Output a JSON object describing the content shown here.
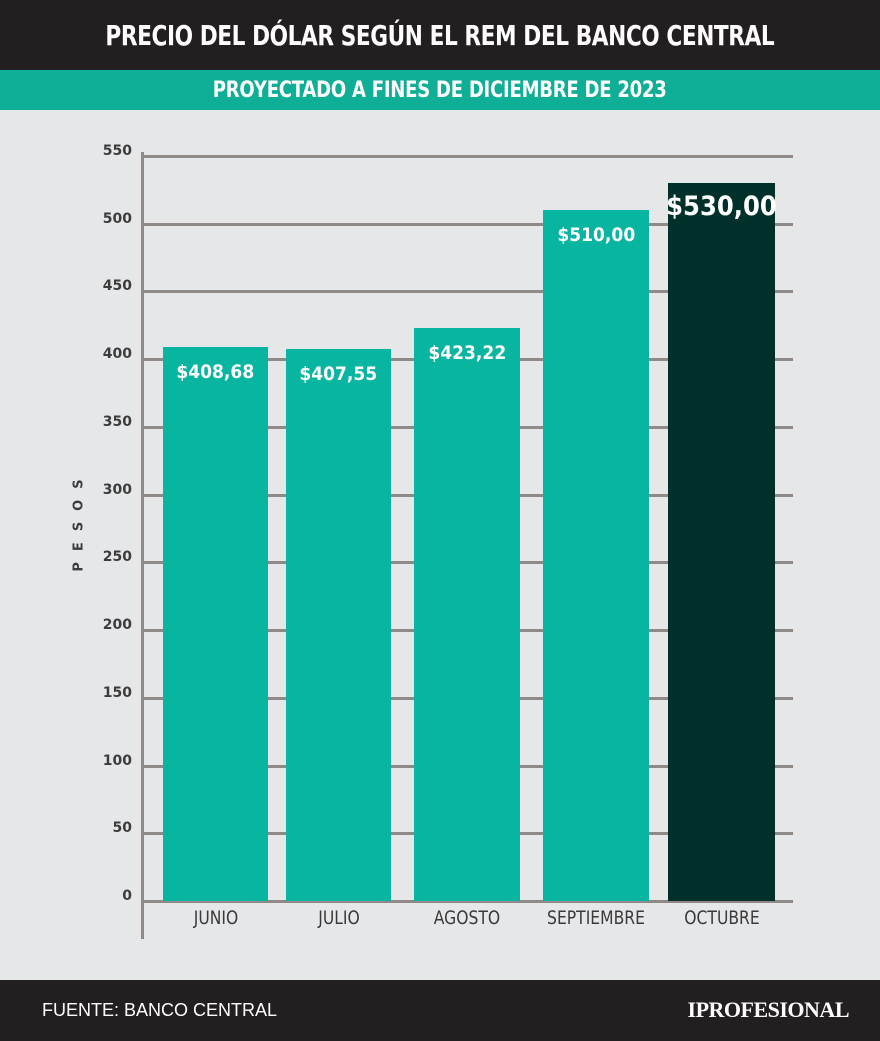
{
  "header": {
    "title": "PRECIO DEL DÓLAR SEGÚN EL REM DEL BANCO CENTRAL",
    "subtitle": "PROYECTADO A FINES DE DICIEMBRE DE 2023"
  },
  "colors": {
    "header_bg": "#231f20",
    "subheader_bg": "#0fae96",
    "bar": "#08b5a0",
    "bar_highlight": "#00302a",
    "background": "#e6e7e9",
    "grid": "#8f8a88"
  },
  "chart": {
    "ylabel": "PESOS",
    "yticks": [
      "0",
      "50",
      "100",
      "150",
      "200",
      "250",
      "300",
      "350",
      "400",
      "450",
      "500",
      "550"
    ],
    "bar_labels": [
      "$408,68",
      "$407,55",
      "$423,22",
      "$510,00",
      "$530,00"
    ],
    "categories": [
      "JUNIO",
      "JULIO",
      "AGOSTO",
      "SEPTIEMBRE",
      "OCTUBRE"
    ]
  },
  "chart_data": {
    "type": "bar",
    "title": "PRECIO DEL DÓLAR SEGÚN EL REM DEL BANCO CENTRAL",
    "subtitle": "PROYECTADO A FINES DE DICIEMBRE DE 2023",
    "categories": [
      "JUNIO",
      "JULIO",
      "AGOSTO",
      "SEPTIEMBRE",
      "OCTUBRE"
    ],
    "values": [
      408.68,
      407.55,
      423.22,
      510.0,
      530.0
    ],
    "data_labels": [
      "$408,68",
      "$407,55",
      "$423,22",
      "$510,00",
      "$530,00"
    ],
    "highlight_index": 4,
    "xlabel": "",
    "ylabel": "PESOS",
    "ylim": [
      0,
      550
    ],
    "yticks": [
      0,
      50,
      100,
      150,
      200,
      250,
      300,
      350,
      400,
      450,
      500,
      550
    ],
    "grid": true,
    "legend": null,
    "source": "FUENTE: BANCO CENTRAL"
  },
  "footer": {
    "source": "FUENTE: BANCO CENTRAL",
    "brand": "IPROFESIONAL"
  }
}
